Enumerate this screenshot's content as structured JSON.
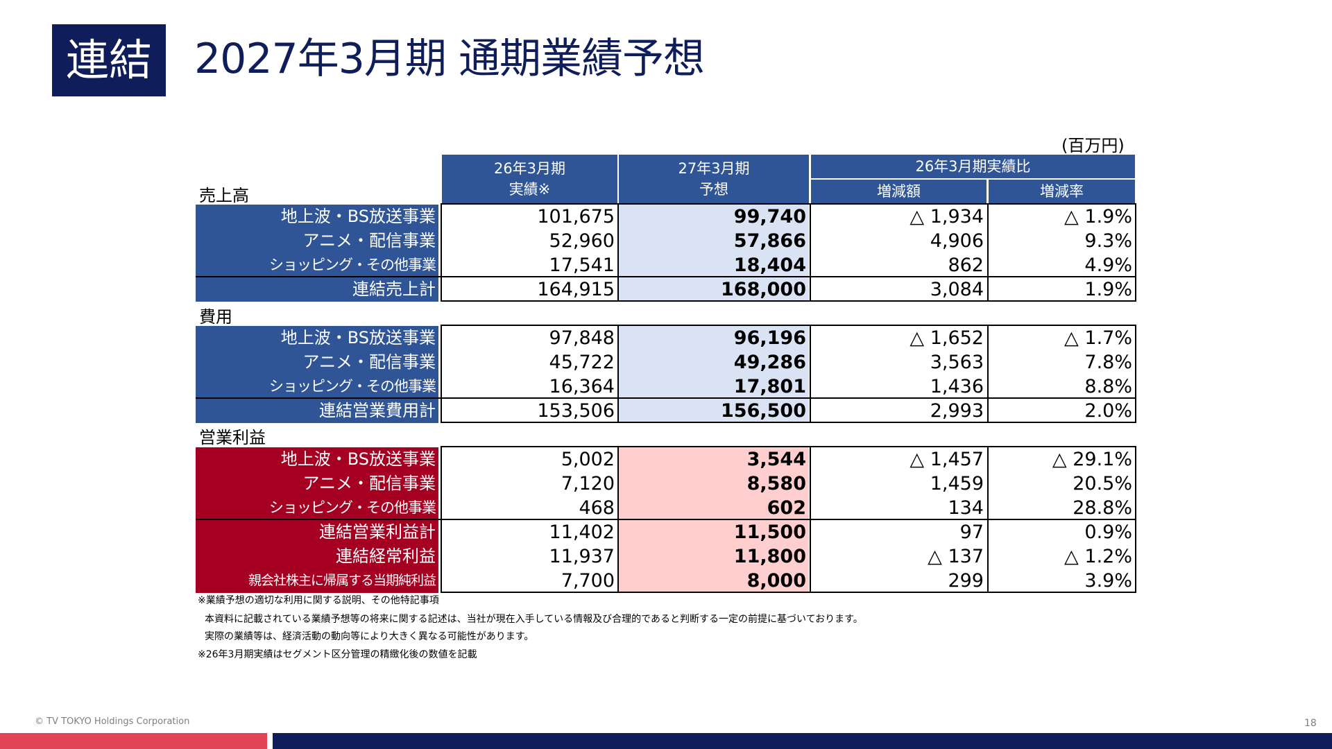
{
  "badge": "連結",
  "title": "2027年3月期 通期業績予想",
  "unit": "(百万円)",
  "headers": {
    "col1": [
      "26年3月期",
      "実績※"
    ],
    "col2": [
      "27年3月期",
      "予想"
    ],
    "group": "26年3月期実績比",
    "col3": "増減額",
    "col4": "増減率"
  },
  "sections": {
    "sales": "売上高",
    "costs": "費用",
    "op": "営業利益"
  },
  "rows": [
    {
      "label": "地上波・BS放送事業",
      "v1": "101,675",
      "v2": "99,740",
      "v3": "△ 1,934",
      "v4": "△ 1.9%"
    },
    {
      "label": "アニメ・配信事業",
      "v1": "52,960",
      "v2": "57,866",
      "v3": "4,906",
      "v4": "9.3%"
    },
    {
      "label": "ショッピング・その他事業",
      "v1": "17,541",
      "v2": "18,404",
      "v3": "862",
      "v4": "4.9%"
    },
    {
      "label": "連結売上計",
      "v1": "164,915",
      "v2": "168,000",
      "v3": "3,084",
      "v4": "1.9%"
    },
    {
      "label": "地上波・BS放送事業",
      "v1": "97,848",
      "v2": "96,196",
      "v3": "△ 1,652",
      "v4": "△ 1.7%"
    },
    {
      "label": "アニメ・配信事業",
      "v1": "45,722",
      "v2": "49,286",
      "v3": "3,563",
      "v4": "7.8%"
    },
    {
      "label": "ショッピング・その他事業",
      "v1": "16,364",
      "v2": "17,801",
      "v3": "1,436",
      "v4": "8.8%"
    },
    {
      "label": "連結営業費用計",
      "v1": "153,506",
      "v2": "156,500",
      "v3": "2,993",
      "v4": "2.0%"
    },
    {
      "label": "地上波・BS放送事業",
      "v1": "5,002",
      "v2": "3,544",
      "v3": "△ 1,457",
      "v4": "△ 29.1%"
    },
    {
      "label": "アニメ・配信事業",
      "v1": "7,120",
      "v2": "8,580",
      "v3": "1,459",
      "v4": "20.5%"
    },
    {
      "label": "ショッピング・その他事業",
      "v1": "468",
      "v2": "602",
      "v3": "134",
      "v4": "28.8%"
    },
    {
      "label": "連結営業利益計",
      "v1": "11,402",
      "v2": "11,500",
      "v3": "97",
      "v4": "0.9%"
    },
    {
      "label": "連結経常利益",
      "v1": "11,937",
      "v2": "11,800",
      "v3": "△ 137",
      "v4": "△ 1.2%"
    },
    {
      "label": "親会社株主に帰属する当期純利益",
      "v1": "7,700",
      "v2": "8,000",
      "v3": "299",
      "v4": "3.9%"
    }
  ],
  "notes": [
    "※業績予想の適切な利用に関する説明、その他特記事項",
    "本資料に記載されている業績予想等の将来に関する記述は、当社が現在入手している情報及び合理的であると判断する一定の前提に基づいております。",
    "実際の業績等は、経済活動の動向等により大きく異なる可能性があります。",
    "※26年3月期実績はセグメント区分管理の精緻化後の数値を記載"
  ],
  "footer": {
    "copyright": "© TV TOKYO Holdings Corporation",
    "page": "18"
  }
}
